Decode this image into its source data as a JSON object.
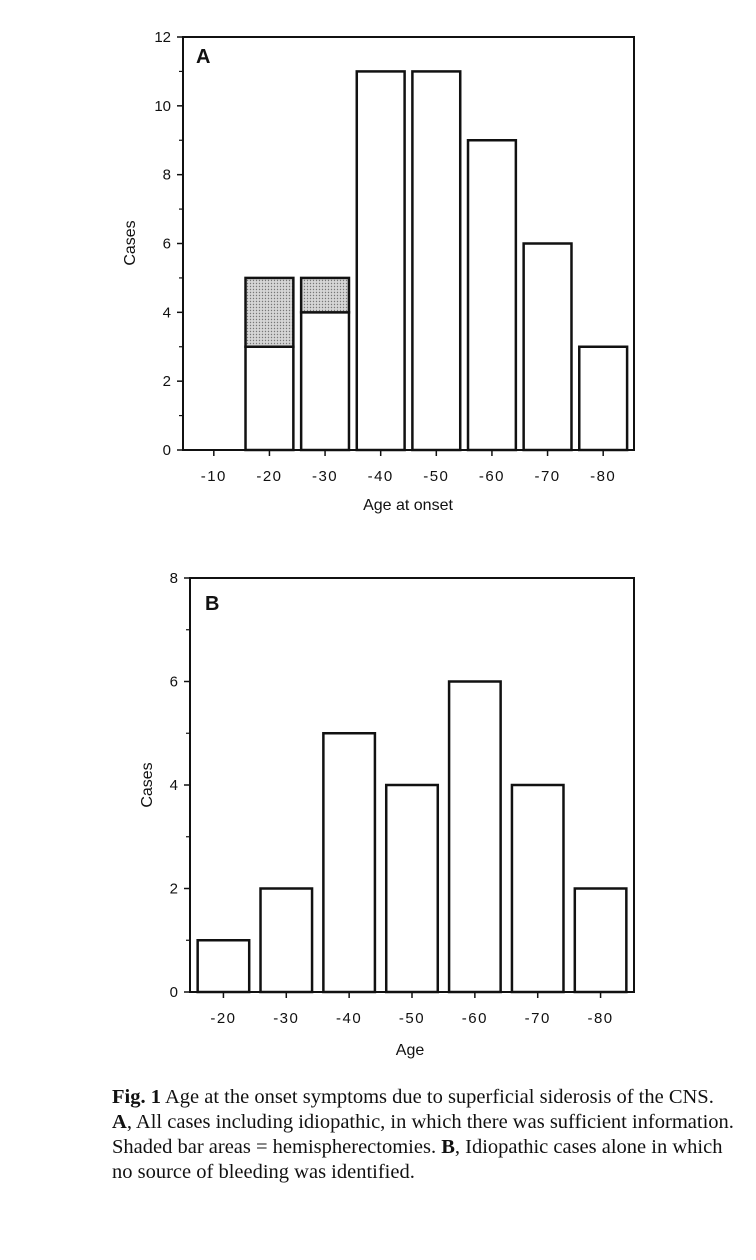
{
  "chart_data": [
    {
      "type": "bar",
      "panel_label": "A",
      "ylabel": "Cases",
      "xlabel": "Age at onset",
      "ylim": [
        0,
        12
      ],
      "yticks": [
        0,
        2,
        4,
        6,
        8,
        10,
        12
      ],
      "categories": [
        "-10",
        "-20",
        "-30",
        "-40",
        "-50",
        "-60",
        "-70",
        "-80"
      ],
      "series": [
        {
          "values": [
            0,
            3,
            4,
            11,
            11,
            9,
            6,
            3
          ]
        },
        {
          "values": [
            0,
            2,
            1,
            0,
            0,
            0,
            0,
            0
          ]
        }
      ],
      "stacked": true,
      "grid": false
    },
    {
      "type": "bar",
      "panel_label": "B",
      "ylabel": "Cases",
      "xlabel": "Age",
      "ylim": [
        0,
        8
      ],
      "yticks": [
        0,
        2,
        4,
        6,
        8
      ],
      "categories": [
        "-20",
        "-30",
        "-40",
        "-50",
        "-60",
        "-70",
        "-80"
      ],
      "values": [
        1,
        2,
        5,
        4,
        6,
        4,
        2
      ],
      "grid": false
    }
  ],
  "caption": {
    "fig_label": "Fig. 1",
    "part1": " Age at the onset symptoms due to superficial siderosis of the CNS. ",
    "label_a": "A",
    "part2": ", All cases including idiopathic, in which there was sufficient information. Shaded bar areas = hemispherectomies. ",
    "label_b": "B",
    "part3": ", Idiopathic cases alone in which no source of bleeding was identified."
  }
}
